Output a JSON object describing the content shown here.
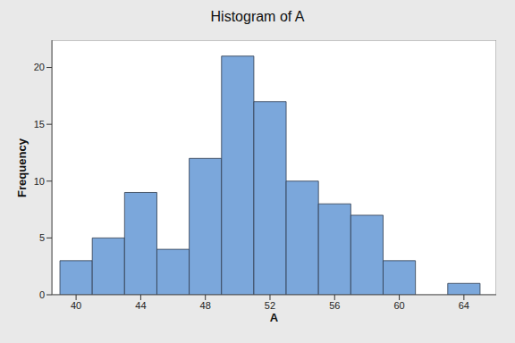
{
  "chart_data": {
    "type": "histogram",
    "title": "Histogram of A",
    "x_label": "A",
    "y_label": "Frequency",
    "bins": [
      39,
      41,
      43,
      45,
      47,
      49,
      51,
      53,
      55,
      57,
      59,
      61,
      63,
      65
    ],
    "values": [
      3,
      5,
      9,
      4,
      12,
      21,
      17,
      10,
      8,
      7,
      3,
      0,
      1
    ],
    "color": "#7ba7db",
    "xlim": [
      38.5,
      66
    ],
    "xticks": [
      40,
      44,
      48,
      52,
      56,
      60,
      64
    ],
    "ylim": [
      0,
      22.4
    ],
    "yticks": [
      0,
      5,
      10,
      15,
      20
    ],
    "grid": false
  }
}
